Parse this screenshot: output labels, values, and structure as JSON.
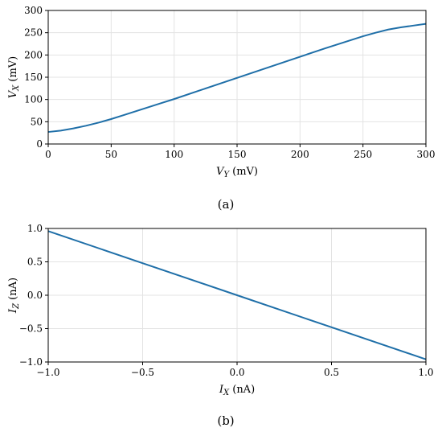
{
  "chart_data": [
    {
      "type": "line",
      "caption": "(a)",
      "xlabel": {
        "main": "V",
        "sub": "Y",
        "unit": " (mV)"
      },
      "ylabel": {
        "main": "V",
        "sub": "X",
        "unit": " (mV)"
      },
      "xlim": [
        0,
        300
      ],
      "ylim": [
        0,
        300
      ],
      "xticks": [
        0,
        50,
        100,
        150,
        200,
        250,
        300
      ],
      "yticks": [
        0,
        50,
        100,
        150,
        200,
        250,
        300
      ],
      "xtick_labels": [
        "0",
        "50",
        "100",
        "150",
        "200",
        "250",
        "300"
      ],
      "ytick_labels": [
        "0",
        "50",
        "100",
        "150",
        "200",
        "250",
        "300"
      ],
      "grid": true,
      "series": [
        {
          "color": "#1f6fa8",
          "x": [
            0,
            10,
            20,
            30,
            40,
            50,
            60,
            70,
            80,
            90,
            100,
            120,
            140,
            160,
            180,
            200,
            220,
            240,
            250,
            260,
            270,
            280,
            290,
            300
          ],
          "y": [
            27,
            30,
            35,
            41,
            48,
            56,
            65,
            74,
            83,
            92,
            101,
            120,
            139,
            158,
            177,
            196,
            215,
            233,
            242,
            250,
            257,
            262,
            266,
            270
          ]
        }
      ]
    },
    {
      "type": "line",
      "caption": "(b)",
      "xlabel": {
        "main": "I",
        "sub": "X",
        "unit": " (nA)"
      },
      "ylabel": {
        "main": "I",
        "sub": "Z",
        "unit": " (nA)"
      },
      "xlim": [
        -1.0,
        1.0
      ],
      "ylim": [
        -1.0,
        1.0
      ],
      "xticks": [
        -1.0,
        -0.5,
        0.0,
        0.5,
        1.0
      ],
      "yticks": [
        -1.0,
        -0.5,
        0.0,
        0.5,
        1.0
      ],
      "xtick_labels": [
        "−1.0",
        "−0.5",
        "0.0",
        "0.5",
        "1.0"
      ],
      "ytick_labels": [
        "−1.0",
        "−0.5",
        "0.0",
        "0.5",
        "1.0"
      ],
      "grid": true,
      "series": [
        {
          "color": "#1f6fa8",
          "x": [
            -1.0,
            -0.5,
            0.0,
            0.5,
            1.0
          ],
          "y": [
            0.96,
            0.48,
            0.0,
            -0.48,
            -0.96
          ]
        }
      ]
    }
  ]
}
